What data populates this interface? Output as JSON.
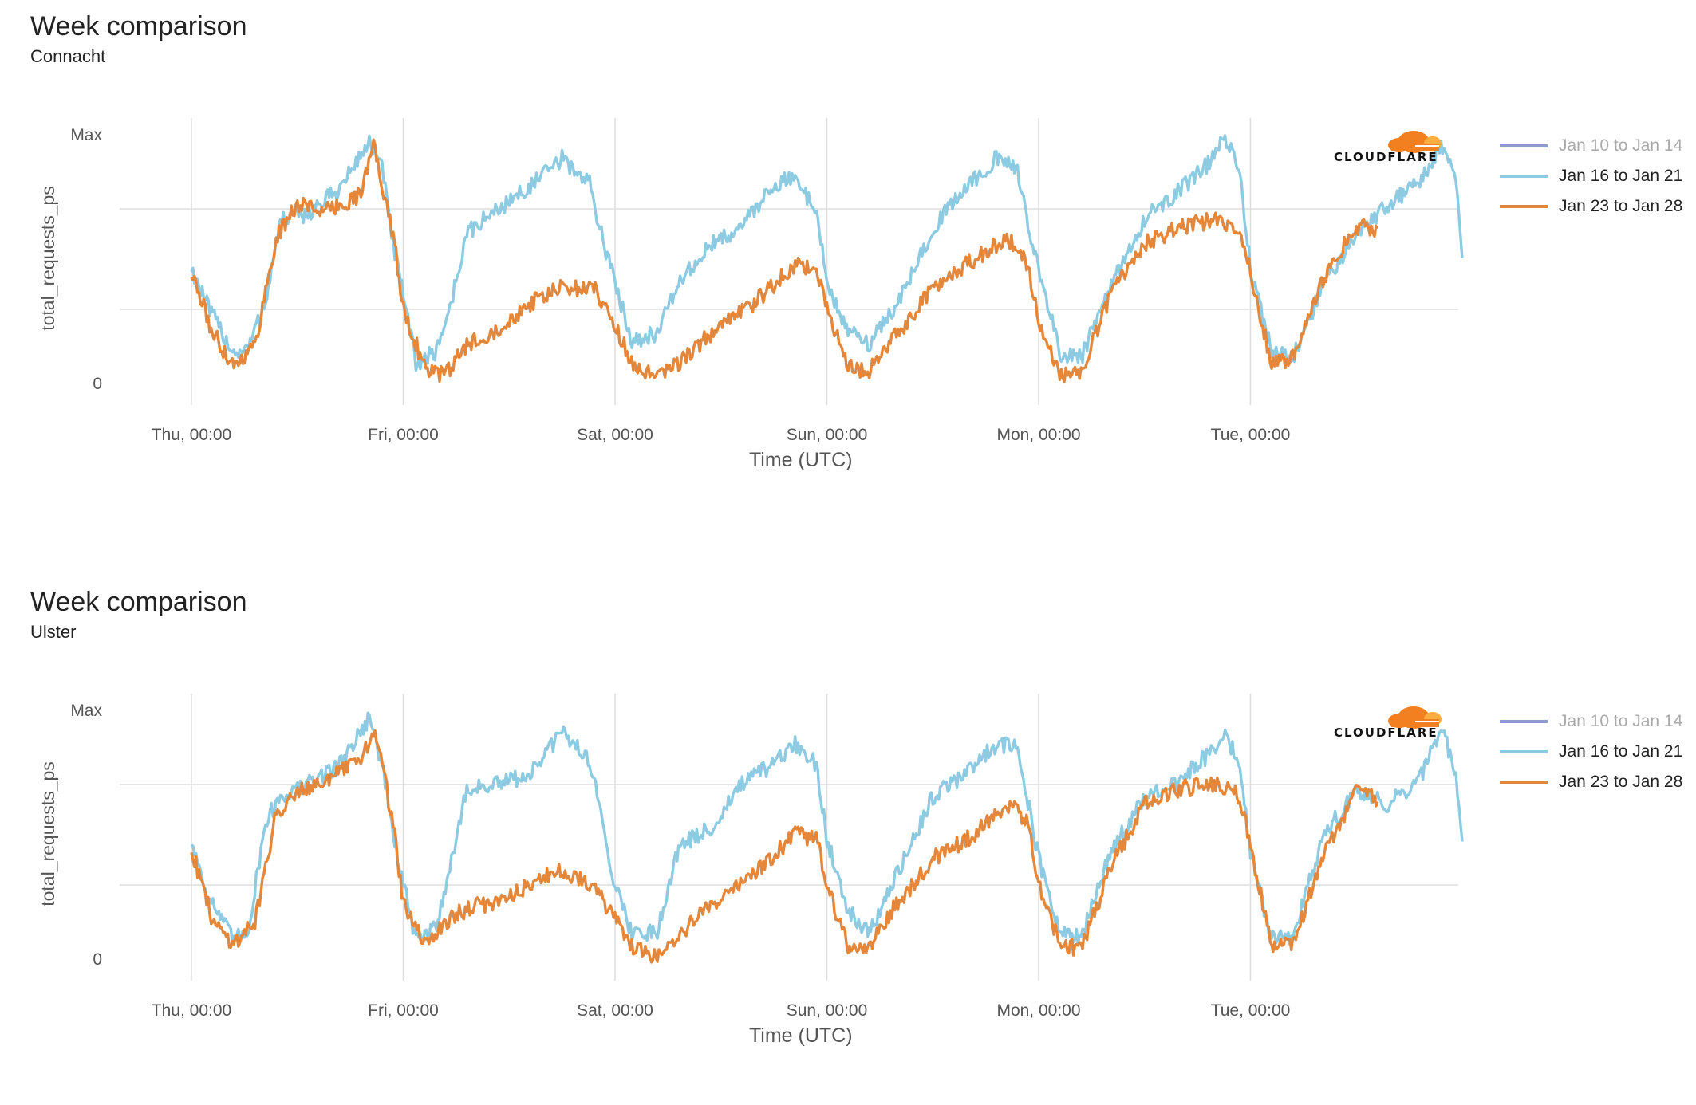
{
  "colors": {
    "series_0": "#8f9bd0",
    "series_1": "#8ccbe2",
    "series_2": "#e4873a",
    "grid": "#dddddd",
    "axis_text": "#555555",
    "logo_orange": "#f38020",
    "logo_amber": "#faae40"
  },
  "logo": {
    "text": "CLOUDFLARE",
    "icon": "cloudflare-cloud-icon"
  },
  "chart_data": [
    {
      "type": "line",
      "title": "Week comparison",
      "subtitle": "Connacht",
      "xlabel": "Time (UTC)",
      "ylabel": "total_requests_ps",
      "x_ticks": [
        "Thu, 00:00",
        "Fri, 00:00",
        "Sat, 00:00",
        "Sun, 00:00",
        "Mon, 00:00",
        "Tue, 00:00"
      ],
      "y_ticks": [
        "0",
        "Max"
      ],
      "y_values_normalized": true,
      "ylim": [
        0,
        1
      ],
      "xlim_days": [
        0,
        6
      ],
      "grid": true,
      "legend_placement": "right",
      "series": [
        {
          "name": "Jan 10 to Jan 14",
          "x": [],
          "y": [],
          "faded": true
        },
        {
          "name": "Jan 16 to Jan 21",
          "x": [
            0,
            0.08,
            0.2,
            0.27,
            0.35,
            0.42,
            0.55,
            0.7,
            0.84,
            0.9,
            0.96,
            1.0,
            1.06,
            1.15,
            1.22,
            1.3,
            1.45,
            1.6,
            1.75,
            1.88,
            1.95,
            2.0,
            2.08,
            2.2,
            2.3,
            2.45,
            2.6,
            2.75,
            2.85,
            2.95,
            3.0,
            3.1,
            3.2,
            3.35,
            3.5,
            3.65,
            3.8,
            3.9,
            4.0,
            4.1,
            4.2,
            4.35,
            4.5,
            4.65,
            4.8,
            4.88,
            4.95,
            5.0,
            5.1,
            5.2,
            5.35,
            5.5,
            5.65,
            5.8,
            5.9,
            5.97,
            6.0
          ],
          "y": [
            0.46,
            0.3,
            0.12,
            0.14,
            0.33,
            0.65,
            0.68,
            0.78,
            0.97,
            0.86,
            0.52,
            0.35,
            0.08,
            0.12,
            0.3,
            0.6,
            0.7,
            0.79,
            0.9,
            0.8,
            0.55,
            0.4,
            0.17,
            0.2,
            0.4,
            0.55,
            0.63,
            0.8,
            0.82,
            0.7,
            0.4,
            0.2,
            0.16,
            0.34,
            0.62,
            0.78,
            0.9,
            0.85,
            0.45,
            0.12,
            0.1,
            0.4,
            0.66,
            0.76,
            0.88,
            0.98,
            0.85,
            0.46,
            0.12,
            0.1,
            0.4,
            0.6,
            0.72,
            0.81,
            0.96,
            0.81,
            0.5
          ]
        },
        {
          "name": "Jan 23 to Jan 28",
          "x": [
            0,
            0.1,
            0.2,
            0.3,
            0.4,
            0.5,
            0.65,
            0.8,
            0.86,
            0.9,
            0.96,
            1.0,
            1.1,
            1.2,
            1.3,
            1.45,
            1.6,
            1.75,
            1.9,
            1.95,
            2.0,
            2.1,
            2.2,
            2.3,
            2.5,
            2.7,
            2.85,
            2.95,
            3.0,
            3.1,
            3.2,
            3.3,
            3.5,
            3.7,
            3.85,
            3.95,
            4.0,
            4.1,
            4.2,
            4.35,
            4.5,
            4.65,
            4.85,
            4.95,
            5.0,
            5.1,
            5.2,
            5.35,
            5.5,
            5.6
          ],
          "y": [
            0.44,
            0.2,
            0.07,
            0.15,
            0.58,
            0.72,
            0.69,
            0.76,
            0.96,
            0.8,
            0.55,
            0.3,
            0.06,
            0.03,
            0.15,
            0.22,
            0.32,
            0.38,
            0.38,
            0.32,
            0.22,
            0.05,
            0.02,
            0.08,
            0.23,
            0.35,
            0.48,
            0.45,
            0.3,
            0.06,
            0.05,
            0.16,
            0.38,
            0.5,
            0.58,
            0.48,
            0.25,
            0.03,
            0.04,
            0.38,
            0.56,
            0.62,
            0.66,
            0.62,
            0.45,
            0.07,
            0.1,
            0.42,
            0.63,
            0.62
          ]
        }
      ]
    },
    {
      "type": "line",
      "title": "Week comparison",
      "subtitle": "Ulster",
      "xlabel": "Time (UTC)",
      "ylabel": "total_requests_ps",
      "x_ticks": [
        "Thu, 00:00",
        "Fri, 00:00",
        "Sat, 00:00",
        "Sun, 00:00",
        "Mon, 00:00",
        "Tue, 00:00"
      ],
      "y_ticks": [
        "0",
        "Max"
      ],
      "y_values_normalized": true,
      "ylim": [
        0,
        1
      ],
      "xlim_days": [
        0,
        6
      ],
      "grid": true,
      "legend_placement": "right",
      "series": [
        {
          "name": "Jan 10 to Jan 14",
          "x": [],
          "y": [],
          "faded": true
        },
        {
          "name": "Jan 16 to Jan 21",
          "x": [
            0,
            0.08,
            0.2,
            0.27,
            0.35,
            0.42,
            0.55,
            0.7,
            0.84,
            0.9,
            0.96,
            1.0,
            1.06,
            1.15,
            1.22,
            1.3,
            1.45,
            1.6,
            1.75,
            1.88,
            1.95,
            2.0,
            2.08,
            2.2,
            2.3,
            2.45,
            2.6,
            2.75,
            2.85,
            2.95,
            3.0,
            3.1,
            3.2,
            3.35,
            3.5,
            3.65,
            3.8,
            3.9,
            4.0,
            4.1,
            4.2,
            4.35,
            4.5,
            4.65,
            4.8,
            4.88,
            4.95,
            5.0,
            5.1,
            5.2,
            5.35,
            5.5,
            5.65,
            5.8,
            5.9,
            5.97,
            6.0
          ],
          "y": [
            0.47,
            0.25,
            0.07,
            0.12,
            0.55,
            0.65,
            0.7,
            0.78,
            0.97,
            0.78,
            0.46,
            0.3,
            0.07,
            0.12,
            0.36,
            0.68,
            0.7,
            0.74,
            0.91,
            0.8,
            0.5,
            0.3,
            0.1,
            0.11,
            0.45,
            0.52,
            0.7,
            0.78,
            0.86,
            0.78,
            0.48,
            0.2,
            0.1,
            0.37,
            0.65,
            0.74,
            0.86,
            0.86,
            0.4,
            0.1,
            0.08,
            0.45,
            0.64,
            0.7,
            0.82,
            0.9,
            0.78,
            0.42,
            0.08,
            0.09,
            0.5,
            0.67,
            0.62,
            0.72,
            0.93,
            0.75,
            0.47
          ]
        },
        {
          "name": "Jan 23 to Jan 28",
          "x": [
            0,
            0.1,
            0.2,
            0.3,
            0.4,
            0.5,
            0.65,
            0.8,
            0.86,
            0.9,
            0.96,
            1.0,
            1.1,
            1.2,
            1.3,
            1.45,
            1.6,
            1.75,
            1.9,
            1.95,
            2.0,
            2.1,
            2.2,
            2.3,
            2.5,
            2.7,
            2.85,
            2.95,
            3.0,
            3.1,
            3.2,
            3.3,
            3.5,
            3.7,
            3.85,
            3.95,
            4.0,
            4.1,
            4.2,
            4.35,
            4.5,
            4.65,
            4.85,
            4.95,
            5.0,
            5.1,
            5.2,
            5.35,
            5.5,
            5.6
          ],
          "y": [
            0.44,
            0.15,
            0.06,
            0.15,
            0.58,
            0.68,
            0.72,
            0.8,
            0.92,
            0.78,
            0.5,
            0.22,
            0.05,
            0.15,
            0.2,
            0.23,
            0.3,
            0.35,
            0.3,
            0.22,
            0.15,
            0.03,
            0.01,
            0.09,
            0.25,
            0.37,
            0.5,
            0.48,
            0.3,
            0.04,
            0.04,
            0.18,
            0.4,
            0.5,
            0.62,
            0.55,
            0.3,
            0.05,
            0.04,
            0.38,
            0.62,
            0.68,
            0.7,
            0.65,
            0.45,
            0.05,
            0.06,
            0.42,
            0.68,
            0.63
          ]
        }
      ]
    }
  ]
}
